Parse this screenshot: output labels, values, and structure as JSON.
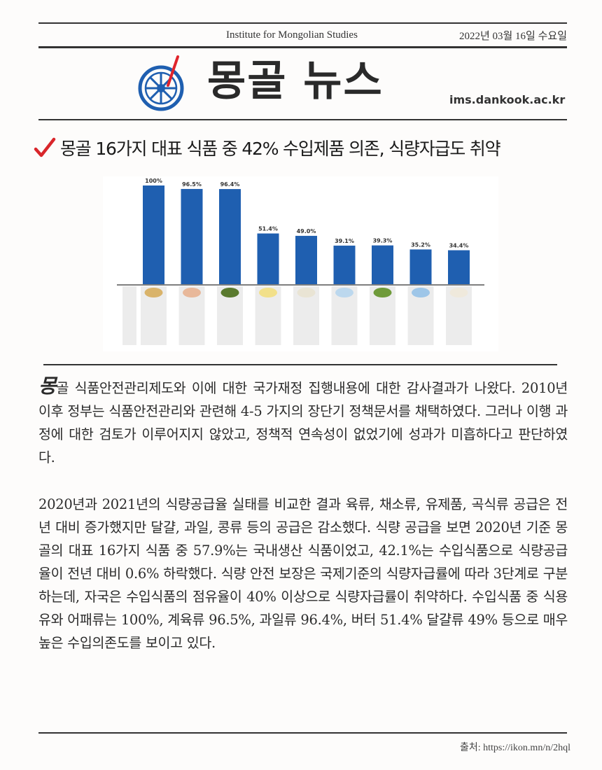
{
  "header": {
    "institute": "Institute for Mongolian Studies",
    "date": "2022년 03월 16일 수요일",
    "masthead": "몽골 뉴스",
    "website": "ims.dankook.ac.kr"
  },
  "article": {
    "headline": "몽골 16가지 대표 식품 중 42% 수입제품 의존, 식량자급도 취약",
    "dropcap": "몽",
    "paragraph1_rest": "골 식품안전관리제도와 이에 대한 국가재정 집행내용에 대한 감사결과가 나왔다.  2010년 이후 정부는 식품안전관리와 관련해 4-5 가지의 장단기 정책문서를 채택하였다. 그러나 이행 과정에 대한 검토가 이루어지지 않았고, 정책적 연속성이 없었기에 성과가 미흡하다고 판단하였다.",
    "paragraph2": "2020년과 2021년의 식량공급율 실태를 비교한 결과 육류, 채소류, 유제품, 곡식류 공급은 전년 대비 증가했지만 달걀, 과일, 콩류 등의 공급은 감소했다. 식량 공급을 보면 2020년 기준 몽골의 대표 16가지 식품 중 57.9%는 국내생산 식품이었고, 42.1%는 수입식품으로 식량공급율이 전년 대비 0.6% 하락했다. 식량 안전 보장은 국제기준의 식량자급률에 따라 3단계로 구분하는데, 자국은 수입식품의 점유율이 40% 이상으로 식량자급률이 취약하다. 수입식품 중 식용유와 어패류는 100%, 계육류 96.5%, 과일류 96.4%, 버터 51.4% 달걀류 49% 등으로 매우 높은 수입의존도를 보이고 있다."
  },
  "source": "출처: https://ikon.mn/n/2hql",
  "chart_data": {
    "type": "bar",
    "categories": [
      "",
      "",
      "",
      "",
      "",
      "",
      "",
      "",
      ""
    ],
    "values": [
      100,
      96.5,
      96.4,
      51.4,
      49.0,
      39.1,
      39.3,
      35.2,
      34.4
    ],
    "value_labels": [
      "100%",
      "96.5%",
      "96.4%",
      "51.4%",
      "49.0%",
      "39.1%",
      "39.3%",
      "35.2%",
      "34.4%"
    ],
    "ylim": [
      0,
      100
    ],
    "color": "#1f5fb0"
  }
}
